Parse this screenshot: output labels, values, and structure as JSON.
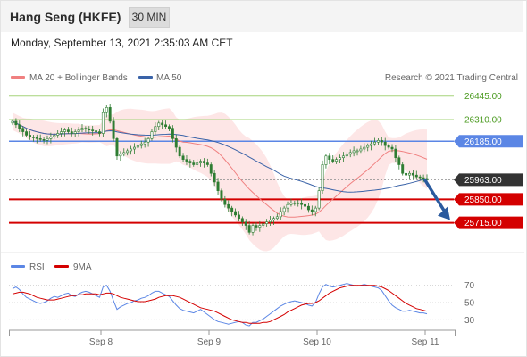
{
  "header": {
    "title": "Hang Seng (HKFE)",
    "timeframe": "30 MIN",
    "datetime": "Monday, September 13, 2021 2:35:03 AM CET"
  },
  "price_panel": {
    "legend": [
      {
        "label": "MA 20 + Bollinger Bands",
        "color": "#f08080"
      },
      {
        "label": "MA 50",
        "color": "#3a63a8"
      }
    ],
    "credit": "Research © 2021 Trading Central"
  },
  "colors": {
    "candle_up": "#2e7d32",
    "candle_down": "#2e7d32",
    "resistance": "#a5d47a",
    "pivot": "#5b86e5",
    "support": "#d40000",
    "bollinger_fill": "#fde3e3",
    "ma20": "#f08080",
    "ma50": "#3a63a8",
    "last_price": "#333333",
    "arrow": "#2a5a9e",
    "rsi": "#5b86e5",
    "rsi_ma": "#d40000"
  },
  "chart_data": [
    {
      "type": "candlestick",
      "title": "Hang Seng (HKFE)",
      "x_labels": [
        "Sep 8",
        "Sep 9",
        "Sep 10",
        "Sep 11"
      ],
      "ylim": [
        25600,
        26500
      ],
      "last_price": 25963,
      "levels": [
        {
          "label": "26445.00",
          "value": 26445,
          "kind": "resistance"
        },
        {
          "label": "26310.00",
          "value": 26310,
          "kind": "resistance"
        },
        {
          "label": "26185.00",
          "value": 26185,
          "kind": "pivot"
        },
        {
          "label": "25963.00",
          "value": 25963,
          "kind": "last"
        },
        {
          "label": "25850.00",
          "value": 25850,
          "kind": "support"
        },
        {
          "label": "25715.00",
          "value": 25715,
          "kind": "support"
        }
      ],
      "close": [
        26300,
        26280,
        26260,
        26240,
        26220,
        26210,
        26205,
        26200,
        26195,
        26190,
        26200,
        26210,
        26220,
        26230,
        26240,
        26250,
        26240,
        26230,
        26240,
        26250,
        26260,
        26255,
        26250,
        26245,
        26240,
        26230,
        26350,
        26380,
        26300,
        26200,
        26100,
        26110,
        26120,
        26130,
        26140,
        26150,
        26160,
        26170,
        26180,
        26200,
        26240,
        26270,
        26290,
        26280,
        26270,
        26260,
        26200,
        26150,
        26100,
        26080,
        26070,
        26060,
        26050,
        26060,
        26070,
        26060,
        26050,
        26000,
        25950,
        25900,
        25850,
        25820,
        25800,
        25780,
        25760,
        25740,
        25720,
        25700,
        25660,
        25700,
        25690,
        25700,
        25710,
        25720,
        25730,
        25740,
        25750,
        25780,
        25800,
        25820,
        25830,
        25830,
        25830,
        25820,
        25810,
        25790,
        25780,
        25800,
        25900,
        26050,
        26100,
        26080,
        26070,
        26080,
        26090,
        26100,
        26110,
        26120,
        26130,
        26130,
        26140,
        26150,
        26160,
        26170,
        26180,
        26190,
        26180,
        26160,
        26150,
        26140,
        26090,
        26050,
        26000,
        25990,
        26000,
        25990,
        25980,
        25975,
        25970,
        25963
      ],
      "series": [
        {
          "name": "MA 20 + Bollinger Bands"
        },
        {
          "name": "MA 50"
        }
      ]
    },
    {
      "type": "line",
      "x_labels": [
        "Sep 8",
        "Sep 9",
        "Sep 10",
        "Sep 11"
      ],
      "yticks": [
        70,
        50,
        30
      ],
      "ylim": [
        20,
        80
      ],
      "series": [
        {
          "name": "RSI",
          "values": [
            66,
            68,
            65,
            60,
            56,
            54,
            52,
            50,
            49,
            50,
            52,
            55,
            57,
            56,
            58,
            60,
            61,
            58,
            57,
            60,
            62,
            63,
            62,
            60,
            58,
            56,
            68,
            70,
            63,
            52,
            42,
            45,
            47,
            49,
            50,
            52,
            53,
            55,
            56,
            58,
            61,
            63,
            63,
            61,
            59,
            57,
            52,
            47,
            43,
            41,
            40,
            39,
            38,
            40,
            42,
            39,
            36,
            33,
            30,
            28,
            27,
            26,
            25,
            26,
            27,
            28,
            27,
            24,
            23,
            27,
            27,
            29,
            31,
            34,
            37,
            40,
            43,
            46,
            48,
            50,
            51,
            52,
            51,
            50,
            49,
            47,
            46,
            50,
            60,
            68,
            71,
            69,
            68,
            69,
            70,
            71,
            72,
            71,
            70,
            69,
            70,
            71,
            70,
            69,
            68,
            67,
            64,
            58,
            52,
            47,
            44,
            42,
            40,
            40,
            41,
            40,
            39,
            38,
            38,
            37
          ]
        },
        {
          "name": "9MA",
          "values": [
            60,
            61,
            62,
            62,
            61,
            60,
            58,
            56,
            55,
            54,
            53,
            53,
            53,
            54,
            55,
            56,
            57,
            58,
            58,
            59,
            59,
            60,
            60,
            60,
            60,
            59,
            60,
            61,
            61,
            60,
            58,
            56,
            55,
            54,
            53,
            52,
            51,
            51,
            51,
            52,
            53,
            54,
            56,
            57,
            58,
            58,
            58,
            57,
            56,
            54,
            52,
            50,
            48,
            46,
            44,
            43,
            42,
            41,
            40,
            38,
            36,
            34,
            32,
            30,
            29,
            28,
            27,
            27,
            26,
            26,
            26,
            26,
            27,
            27,
            28,
            30,
            32,
            34,
            36,
            39,
            41,
            43,
            45,
            47,
            48,
            49,
            49,
            50,
            52,
            55,
            58,
            61,
            63,
            65,
            67,
            68,
            69,
            70,
            70,
            70,
            70,
            70,
            70,
            70,
            70,
            69,
            68,
            66,
            64,
            61,
            58,
            55,
            52,
            49,
            47,
            45,
            43,
            42,
            41,
            40
          ]
        }
      ]
    }
  ]
}
